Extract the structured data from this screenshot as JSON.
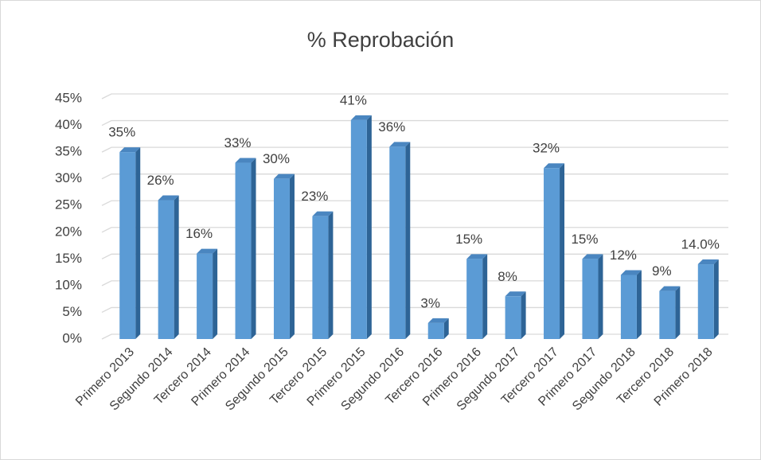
{
  "chart_data": {
    "type": "bar",
    "title": "% Reprobación",
    "categories": [
      "Primero 2013",
      "Segundo 2014",
      "Tercero 2014",
      "Primero 2014",
      "Segundo 2015",
      "Tercero 2015",
      "Primero 2015",
      "Segundo 2016",
      "Tercero 2016",
      "Primero 2016",
      "Segundo 2017",
      "Tercero 2017",
      "Primero 2017",
      "Segundo 2018",
      "Tercero 2018",
      "Primero 2018"
    ],
    "values": [
      35,
      26,
      16,
      33,
      30,
      23,
      41,
      36,
      3,
      15,
      8,
      32,
      15,
      12,
      9,
      14
    ],
    "value_labels": [
      "35%",
      "26%",
      "16%",
      "33%",
      "30%",
      "23%",
      "41%",
      "36%",
      "3%",
      "15%",
      "8%",
      "32%",
      "15%",
      "12%",
      "9%",
      "14.0%"
    ],
    "color": "#5b9bd5",
    "ylim": [
      0,
      45
    ],
    "yticks": [
      {
        "value": 0,
        "label": "0%"
      },
      {
        "value": 5,
        "label": "5%"
      },
      {
        "value": 10,
        "label": "10%"
      },
      {
        "value": 15,
        "label": "15%"
      },
      {
        "value": 20,
        "label": "20%"
      },
      {
        "value": 25,
        "label": "25%"
      },
      {
        "value": 30,
        "label": "30%"
      },
      {
        "value": 35,
        "label": "35%"
      },
      {
        "value": 40,
        "label": "40%"
      },
      {
        "value": 45,
        "label": "45%"
      }
    ],
    "grid": true
  }
}
